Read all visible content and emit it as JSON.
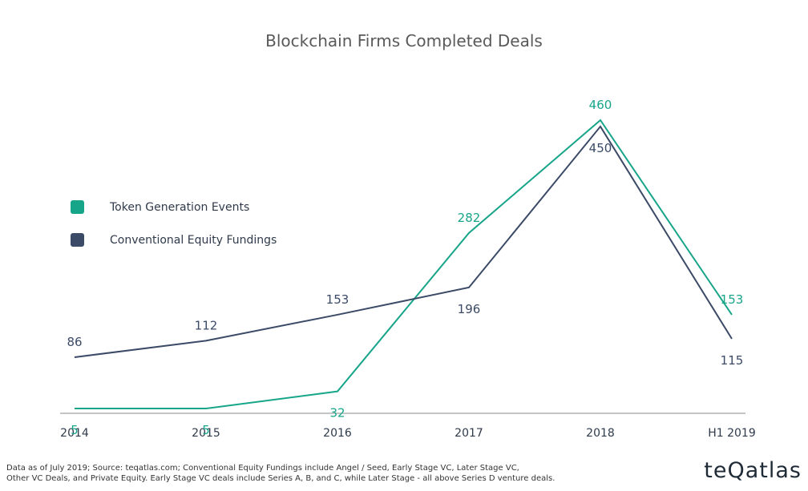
{
  "chart_data": {
    "type": "line",
    "title": "Blockchain Firms Completed Deals",
    "categories": [
      "2014",
      "2015",
      "2016",
      "2017",
      "2018",
      "H1 2019"
    ],
    "series": [
      {
        "name": "Token Generation Events",
        "values": [
          5,
          5,
          32,
          282,
          460,
          153
        ],
        "color": "#17a589"
      },
      {
        "name": "Conventional Equity Fundings",
        "values": [
          86,
          112,
          153,
          196,
          450,
          115
        ],
        "color": "#3b4a66"
      }
    ],
    "ylim": [
      0,
      460
    ],
    "grid": false,
    "legend_position": "left",
    "xlabel": "",
    "ylabel": ""
  },
  "footnote": {
    "line1": "Data as of July 2019; Source: teqatlas.com; Conventional Equity Fundings include Angel / Seed, Early Stage VC, Later Stage VC,",
    "line2": "Other VC Deals, and Private Equity. Early Stage VC deals include Series A, B, and C, while Later Stage - all above Series D venture deals."
  },
  "brand": "teQatlas"
}
